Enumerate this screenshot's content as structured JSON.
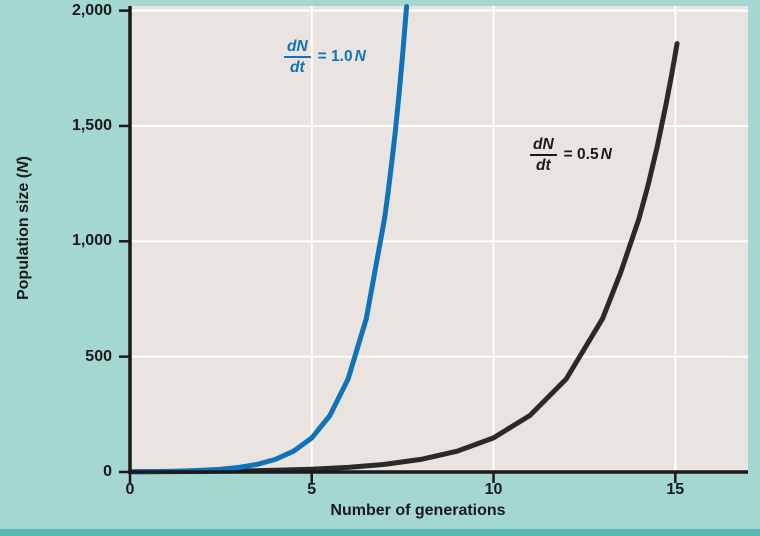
{
  "colors": {
    "background": "#a3d7d0",
    "bottom_bar": "#58bab2",
    "plot_bg": "#e9e4df",
    "gridline": "#ffffff",
    "axis": "#1a1a1a",
    "text": "#1a1a1a"
  },
  "chart_data": {
    "type": "line",
    "title": "",
    "xlabel": "Number of generations",
    "ylabel": "Population size (N)",
    "xlim": [
      0,
      17
    ],
    "ylim": [
      0,
      2020
    ],
    "xticks": [
      0,
      5,
      10,
      15
    ],
    "xtick_labels": [
      "0",
      "5",
      "10",
      "15"
    ],
    "yticks": [
      0,
      500,
      1000,
      1500,
      2000
    ],
    "ytick_labels": [
      "0",
      "500",
      "1,000",
      "1,500",
      "2,000"
    ],
    "grid": true,
    "legend": "none (inline curve annotations)",
    "series": [
      {
        "name": "dN/dt = 1.0N",
        "color": "#1173b7",
        "points": [
          [
            0,
            1
          ],
          [
            0.5,
            1.6
          ],
          [
            1,
            2.7
          ],
          [
            1.5,
            4.5
          ],
          [
            2,
            7.4
          ],
          [
            2.5,
            12.2
          ],
          [
            3,
            20.1
          ],
          [
            3.5,
            33.1
          ],
          [
            4,
            54.6
          ],
          [
            4.5,
            90
          ],
          [
            5,
            148
          ],
          [
            5.5,
            245
          ],
          [
            6,
            403
          ],
          [
            6.5,
            665
          ],
          [
            7,
            1097
          ],
          [
            7.1,
            1212
          ],
          [
            7.2,
            1339
          ],
          [
            7.3,
            1480
          ],
          [
            7.4,
            1636
          ],
          [
            7.5,
            1808
          ],
          [
            7.61,
            2018
          ]
        ]
      },
      {
        "name": "dN/dt = 0.5N",
        "color": "#2d292a",
        "points": [
          [
            0,
            1
          ],
          [
            1,
            1.6
          ],
          [
            2,
            2.7
          ],
          [
            3,
            4.5
          ],
          [
            4,
            7.4
          ],
          [
            5,
            12.2
          ],
          [
            6,
            20.1
          ],
          [
            7,
            33.1
          ],
          [
            8,
            54.6
          ],
          [
            9,
            90
          ],
          [
            10,
            148
          ],
          [
            11,
            245
          ],
          [
            12,
            403
          ],
          [
            13,
            665
          ],
          [
            13.5,
            866
          ],
          [
            14,
            1097
          ],
          [
            14.25,
            1242
          ],
          [
            14.5,
            1408
          ],
          [
            14.75,
            1598
          ],
          [
            14.9,
            1723
          ],
          [
            15.05,
            1857
          ]
        ]
      }
    ],
    "annotations": {
      "blue": {
        "numerator": "dN",
        "denominator": "dt",
        "eq": "= 1.0",
        "var": "N"
      },
      "black": {
        "numerator": "dN",
        "denominator": "dt",
        "eq": "= 0.5",
        "var": "N"
      }
    }
  },
  "axis_titles": {
    "y": {
      "prefix": "Population size (",
      "var": "N",
      "suffix": ")"
    },
    "x": "Number of generations"
  }
}
